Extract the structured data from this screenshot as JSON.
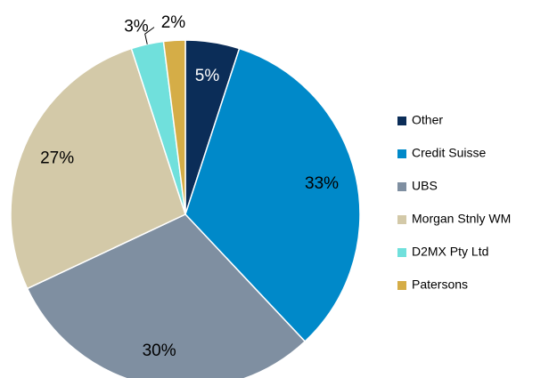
{
  "chart_data": {
    "type": "pie",
    "categories": [
      "Other",
      "Credit Suisse",
      "UBS",
      "Morgan Stnly WM",
      "D2MX Pty Ltd",
      "Patersons"
    ],
    "values": [
      5,
      33,
      30,
      27,
      3,
      2
    ],
    "value_labels": [
      "5%",
      "33%",
      "30%",
      "27%",
      "3%",
      "2%"
    ],
    "colors": [
      "#0b2d58",
      "#0089c9",
      "#7f8fa1",
      "#d3c9a8",
      "#70e0dc",
      "#d5ad47"
    ],
    "legend": "right"
  }
}
